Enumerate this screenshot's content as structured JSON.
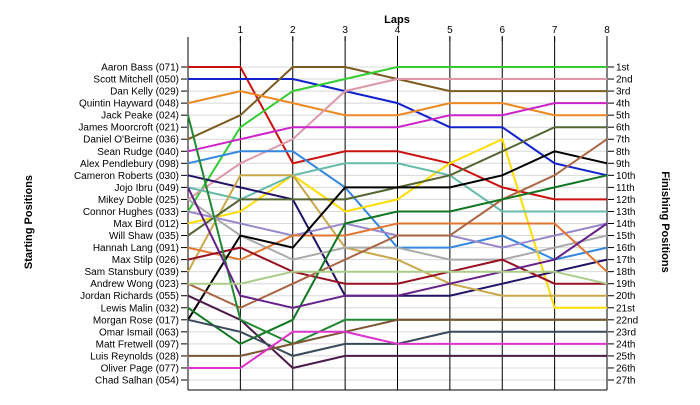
{
  "chart_data": {
    "type": "line",
    "title": "",
    "xlabel": "Laps",
    "ylabel_left": "Starting Positions",
    "ylabel_right": "Finishing Positions",
    "x_ticks": [
      "1",
      "2",
      "3",
      "4",
      "5",
      "6",
      "7",
      "8"
    ],
    "x_range": [
      0,
      8
    ],
    "y_range": [
      1,
      27
    ],
    "grid": true,
    "starting_labels": [
      "Aaron Bass (071)",
      "Scott Mitchell (050)",
      "Dan Kelly (029)",
      "Quintin Hayward (048)",
      "Jack Peake (024)",
      "James Moorcroft (021)",
      "Daniel O'Beirne (036)",
      "Sean Rudge (040)",
      "Alex Pendlebury (098)",
      "Cameron Roberts (030)",
      "Jojo Ibru (049)",
      "Mikey Doble (025)",
      "Connor Hughes (033)",
      "Max Bird (012)",
      "Will Shaw (035)",
      "Hannah Lang (091)",
      "Max Stilp (026)",
      "Sam Stansbury (039)",
      "Andrew Wong (023)",
      "Jordan Richards (055)",
      "Lewis Malin (032)",
      "Morgan Rose (017)",
      "Omar Ismail (063)",
      "Matt Fretwell (097)",
      "Luis Reynolds (028)",
      "Oliver Page (077)",
      "Chad Salhan (054)"
    ],
    "finishing_labels": [
      "1st",
      "2nd",
      "3rd",
      "4th",
      "5th",
      "6th",
      "7th",
      "8th",
      "9th",
      "10th",
      "11th",
      "12th",
      "13th",
      "14th",
      "15th",
      "16th",
      "17th",
      "18th",
      "19th",
      "20th",
      "21st",
      "22nd",
      "23rd",
      "24th",
      "25th",
      "26th",
      "27th"
    ],
    "series": [
      {
        "color": "#cc1111",
        "positions": [
          1,
          1,
          9,
          8,
          8,
          9,
          11,
          12,
          12
        ]
      },
      {
        "color": "#1122cc",
        "positions": [
          2,
          2,
          2,
          3,
          4,
          6,
          6,
          9,
          10
        ]
      },
      {
        "color": "#7b5c1e",
        "positions": [
          7,
          5,
          1,
          1,
          2,
          3,
          3,
          3,
          3
        ]
      },
      {
        "color": "#33cc33",
        "positions": [
          13,
          6,
          3,
          2,
          1,
          1,
          1,
          1,
          1
        ]
      },
      {
        "color": "#ee8822",
        "positions": [
          4,
          3,
          4,
          5,
          5,
          4,
          4,
          5,
          5
        ]
      },
      {
        "color": "#dd99aa",
        "positions": [
          12,
          9,
          7,
          3,
          2,
          2,
          2,
          2,
          2
        ]
      },
      {
        "color": "#cc22cc",
        "positions": [
          8,
          7,
          6,
          6,
          6,
          5,
          5,
          4,
          4
        ]
      },
      {
        "color": "#3388dd",
        "positions": [
          9,
          8,
          8,
          11,
          16,
          16,
          15,
          17,
          16
        ]
      },
      {
        "color": "#ffdd00",
        "positions": [
          14,
          13,
          10,
          13,
          12,
          9,
          7,
          21,
          21
        ]
      },
      {
        "color": "#66bbaa",
        "positions": [
          11,
          12,
          10,
          9,
          9,
          10,
          13,
          13,
          13
        ]
      },
      {
        "color": "#221166",
        "positions": [
          10,
          11,
          12,
          20,
          20,
          20,
          19,
          18,
          17
        ]
      },
      {
        "color": "#c8a84a",
        "positions": [
          18,
          10,
          10,
          16,
          17,
          19,
          20,
          20,
          20
        ]
      },
      {
        "color": "#556633",
        "positions": [
          15,
          12,
          12,
          12,
          11,
          10,
          8,
          6,
          6
        ]
      },
      {
        "color": "#9988cc",
        "positions": [
          13,
          14,
          15,
          14,
          15,
          15,
          16,
          15,
          14
        ]
      },
      {
        "color": "#aaaaaa",
        "positions": [
          12,
          15,
          17,
          16,
          16,
          17,
          17,
          16,
          15
        ]
      },
      {
        "color": "#e07733",
        "positions": [
          16,
          17,
          15,
          15,
          14,
          14,
          14,
          14,
          18
        ]
      },
      {
        "color": "#000000",
        "positions": [
          22,
          15,
          16,
          11,
          11,
          11,
          10,
          8,
          9
        ]
      },
      {
        "color": "#991122",
        "positions": [
          17,
          16,
          18,
          19,
          19,
          18,
          17,
          19,
          19
        ]
      },
      {
        "color": "#aa6644",
        "positions": [
          19,
          21,
          19,
          17,
          15,
          15,
          12,
          10,
          7
        ]
      },
      {
        "color": "#4a1a4a",
        "positions": [
          20,
          22,
          26,
          25,
          25,
          25,
          25,
          25,
          25
        ]
      },
      {
        "color": "#117722",
        "positions": [
          21,
          24,
          22,
          14,
          13,
          13,
          12,
          11,
          10
        ]
      },
      {
        "color": "#228833",
        "positions": [
          5,
          22,
          24,
          22,
          22,
          22,
          22,
          22,
          22
        ]
      },
      {
        "color": "#662288",
        "positions": [
          11,
          20,
          21,
          20,
          20,
          19,
          18,
          17,
          14
        ]
      },
      {
        "color": "#3a4a5a",
        "positions": [
          22,
          23,
          25,
          24,
          24,
          23,
          23,
          23,
          23
        ]
      },
      {
        "color": "#7a5533",
        "positions": [
          25,
          25,
          24,
          23,
          22,
          22,
          22,
          22,
          22
        ]
      },
      {
        "color": "#dd33cc",
        "positions": [
          26,
          26,
          23,
          23,
          24,
          24,
          24,
          24,
          24
        ]
      },
      {
        "color": "#aacc88",
        "positions": [
          19,
          19,
          18,
          18,
          18,
          18,
          18,
          18,
          19
        ]
      }
    ]
  }
}
